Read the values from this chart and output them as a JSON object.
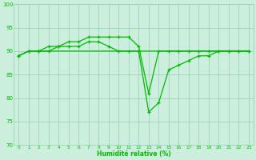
{
  "x": [
    0,
    1,
    2,
    3,
    4,
    5,
    6,
    7,
    8,
    9,
    10,
    11,
    12,
    13,
    14,
    15,
    16,
    17,
    18,
    19,
    20,
    21,
    22,
    23
  ],
  "y_upper": [
    89,
    90,
    90,
    91,
    91,
    92,
    92,
    93,
    93,
    93,
    93,
    93,
    91,
    81,
    90,
    90,
    90,
    90,
    90,
    90,
    90,
    90,
    90,
    90
  ],
  "y_lower": [
    89,
    90,
    90,
    90,
    91,
    91,
    91,
    92,
    92,
    91,
    90,
    90,
    90,
    77,
    79,
    86,
    87,
    88,
    89,
    89,
    90,
    90,
    90,
    90
  ],
  "y_flat": [
    89,
    90,
    90,
    90,
    90,
    90,
    90,
    90,
    90,
    90,
    90,
    90,
    90,
    90,
    90,
    90,
    90,
    90,
    90,
    90,
    90,
    90,
    90,
    90
  ],
  "line_color": "#00bb00",
  "bg_color": "#cceedd",
  "grid_color": "#99ccbb",
  "xlabel": "Humidité relative (%)",
  "ylim": [
    70,
    100
  ],
  "xlim": [
    -0.5,
    23.5
  ],
  "yticks": [
    70,
    75,
    80,
    85,
    90,
    95,
    100
  ],
  "xticks": [
    0,
    1,
    2,
    3,
    4,
    5,
    6,
    7,
    8,
    9,
    10,
    11,
    12,
    13,
    14,
    15,
    16,
    17,
    18,
    19,
    20,
    21,
    22,
    23
  ]
}
